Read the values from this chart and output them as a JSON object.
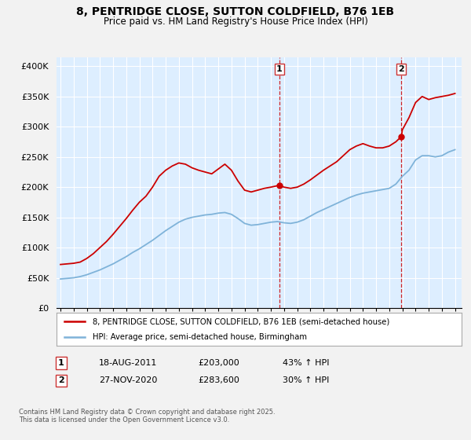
{
  "title": "8, PENTRIDGE CLOSE, SUTTON COLDFIELD, B76 1EB",
  "subtitle": "Price paid vs. HM Land Registry's House Price Index (HPI)",
  "ylabel_ticks": [
    "£0",
    "£50K",
    "£100K",
    "£150K",
    "£200K",
    "£250K",
    "£300K",
    "£350K",
    "£400K"
  ],
  "ytick_values": [
    0,
    50000,
    100000,
    150000,
    200000,
    250000,
    300000,
    350000,
    400000
  ],
  "ylim": [
    0,
    415000
  ],
  "xlim_start": 1994.7,
  "xlim_end": 2025.5,
  "sale1_date": 2011.63,
  "sale1_price": 203000,
  "sale1_label": "1",
  "sale1_text": "18-AUG-2011",
  "sale1_amount": "£203,000",
  "sale1_hpi": "43% ↑ HPI",
  "sale2_date": 2020.92,
  "sale2_price": 283600,
  "sale2_label": "2",
  "sale2_text": "27-NOV-2020",
  "sale2_amount": "£283,600",
  "sale2_hpi": "30% ↑ HPI",
  "red_line_color": "#cc0000",
  "blue_line_color": "#7fb3d9",
  "background_color": "#ddeeff",
  "grid_color": "#ffffff",
  "fig_background": "#f2f2f2",
  "legend_label_red": "8, PENTRIDGE CLOSE, SUTTON COLDFIELD, B76 1EB (semi-detached house)",
  "legend_label_blue": "HPI: Average price, semi-detached house, Birmingham",
  "footnote": "Contains HM Land Registry data © Crown copyright and database right 2025.\nThis data is licensed under the Open Government Licence v3.0.",
  "red_x": [
    1995.0,
    1995.5,
    1996.0,
    1996.5,
    1997.0,
    1997.5,
    1998.0,
    1998.5,
    1999.0,
    1999.5,
    2000.0,
    2000.5,
    2001.0,
    2001.5,
    2002.0,
    2002.5,
    2003.0,
    2003.5,
    2004.0,
    2004.5,
    2005.0,
    2005.5,
    2006.0,
    2006.5,
    2007.0,
    2007.5,
    2008.0,
    2008.5,
    2009.0,
    2009.5,
    2010.0,
    2010.5,
    2011.0,
    2011.63,
    2012.0,
    2012.5,
    2013.0,
    2013.5,
    2014.0,
    2014.5,
    2015.0,
    2015.5,
    2016.0,
    2016.5,
    2017.0,
    2017.5,
    2018.0,
    2018.5,
    2019.0,
    2019.5,
    2020.0,
    2020.5,
    2020.92,
    2021.0,
    2021.5,
    2022.0,
    2022.5,
    2023.0,
    2023.5,
    2024.0,
    2024.5,
    2025.0
  ],
  "red_y": [
    72000,
    73000,
    74000,
    76000,
    82000,
    90000,
    100000,
    110000,
    122000,
    135000,
    148000,
    162000,
    175000,
    185000,
    200000,
    218000,
    228000,
    235000,
    240000,
    238000,
    232000,
    228000,
    225000,
    222000,
    230000,
    238000,
    228000,
    210000,
    195000,
    192000,
    195000,
    198000,
    200000,
    203000,
    200000,
    198000,
    200000,
    205000,
    212000,
    220000,
    228000,
    235000,
    242000,
    252000,
    262000,
    268000,
    272000,
    268000,
    265000,
    265000,
    268000,
    275000,
    283600,
    295000,
    315000,
    340000,
    350000,
    345000,
    348000,
    350000,
    352000,
    355000
  ],
  "blue_x": [
    1995.0,
    1995.5,
    1996.0,
    1996.5,
    1997.0,
    1997.5,
    1998.0,
    1998.5,
    1999.0,
    1999.5,
    2000.0,
    2000.5,
    2001.0,
    2001.5,
    2002.0,
    2002.5,
    2003.0,
    2003.5,
    2004.0,
    2004.5,
    2005.0,
    2005.5,
    2006.0,
    2006.5,
    2007.0,
    2007.5,
    2008.0,
    2008.5,
    2009.0,
    2009.5,
    2010.0,
    2010.5,
    2011.0,
    2011.5,
    2012.0,
    2012.5,
    2013.0,
    2013.5,
    2014.0,
    2014.5,
    2015.0,
    2015.5,
    2016.0,
    2016.5,
    2017.0,
    2017.5,
    2018.0,
    2018.5,
    2019.0,
    2019.5,
    2020.0,
    2020.5,
    2021.0,
    2021.5,
    2022.0,
    2022.5,
    2023.0,
    2023.5,
    2024.0,
    2024.5,
    2025.0
  ],
  "blue_y": [
    48000,
    49000,
    50000,
    52000,
    55000,
    59000,
    63000,
    68000,
    73000,
    79000,
    85000,
    92000,
    98000,
    105000,
    112000,
    120000,
    128000,
    135000,
    142000,
    147000,
    150000,
    152000,
    154000,
    155000,
    157000,
    158000,
    155000,
    148000,
    140000,
    137000,
    138000,
    140000,
    142000,
    143000,
    141000,
    140000,
    142000,
    146000,
    152000,
    158000,
    163000,
    168000,
    173000,
    178000,
    183000,
    187000,
    190000,
    192000,
    194000,
    196000,
    198000,
    205000,
    218000,
    228000,
    245000,
    252000,
    252000,
    250000,
    252000,
    258000,
    262000
  ]
}
